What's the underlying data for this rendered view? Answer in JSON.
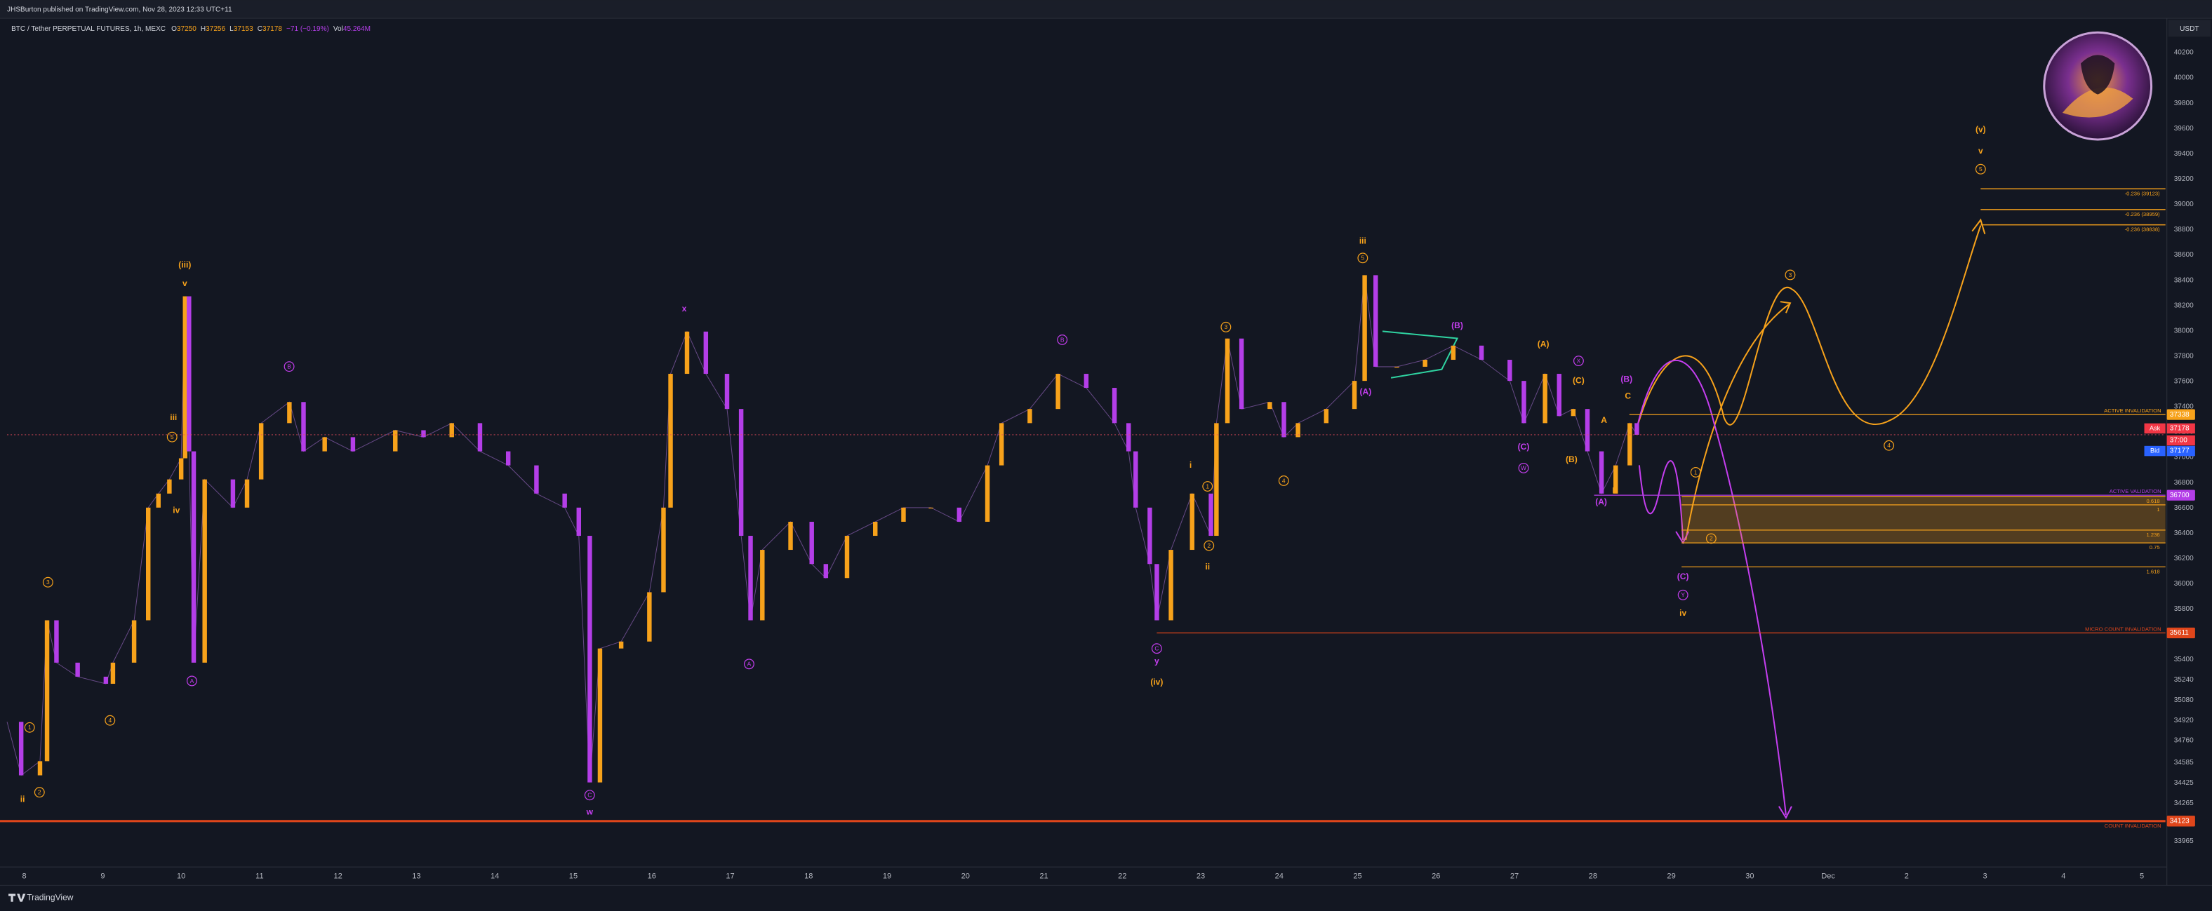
{
  "header": {
    "publisher": "JHSBurton published on TradingView.com, Nov 28, 2023 12:33 UTC+11",
    "brand": "TradingView"
  },
  "chart_data": {
    "type": "candlestick",
    "title": "BTC / Tether PERPETUAL FUTURES, 1h, MEXC",
    "legend": [
      {
        "label": "O",
        "value": 37250
      },
      {
        "label": "H",
        "value": 37256
      },
      {
        "label": "L",
        "value": 37153
      },
      {
        "label": "C",
        "value": 37178
      }
    ],
    "change": "−71 (−0.19%)",
    "volume_label": "Vol",
    "volume": "45.264M",
    "currency": "USDT",
    "up_color": "#f7a21b",
    "down_color": "#b43ee8",
    "x": [
      7.78,
      7.96,
      8.2,
      8.29,
      8.41,
      8.68,
      9.04,
      9.13,
      9.4,
      9.58,
      9.71,
      9.85,
      10.0,
      10.05,
      10.1,
      10.16,
      10.3,
      10.66,
      10.84,
      11.02,
      11.38,
      11.56,
      11.83,
      12.19,
      12.73,
      13.09,
      13.45,
      13.81,
      14.17,
      14.53,
      14.89,
      15.07,
      15.21,
      15.34,
      15.61,
      15.97,
      16.15,
      16.24,
      16.45,
      16.69,
      16.96,
      17.14,
      17.26,
      17.41,
      17.77,
      18.04,
      18.22,
      18.49,
      18.85,
      19.21,
      19.56,
      19.92,
      20.28,
      20.46,
      20.82,
      21.18,
      21.54,
      21.9,
      22.08,
      22.17,
      22.35,
      22.44,
      22.62,
      22.89,
      23.13,
      23.2,
      23.34,
      23.52,
      23.88,
      24.06,
      24.24,
      24.6,
      24.96,
      25.09,
      25.23,
      25.5,
      25.86,
      26.22,
      26.58,
      26.94,
      27.12,
      27.39,
      27.57,
      27.75,
      27.93,
      28.11,
      28.29,
      28.47,
      28.56
    ],
    "values": [
      34908,
      34485,
      34597,
      35711,
      35376,
      35265,
      35209,
      35376,
      35711,
      36602,
      36713,
      36825,
      36992,
      38273,
      37047,
      35376,
      36825,
      36602,
      36825,
      37270,
      37437,
      37047,
      37159,
      37047,
      37214,
      37159,
      37270,
      37047,
      36936,
      36713,
      36602,
      36379,
      34429,
      35488,
      35543,
      35933,
      36602,
      37660,
      37994,
      37660,
      37382,
      36379,
      35711,
      36268,
      36490,
      36156,
      36045,
      36379,
      36490,
      36602,
      36602,
      36490,
      36936,
      37270,
      37382,
      37660,
      37549,
      37270,
      37047,
      36602,
      36156,
      35711,
      36268,
      36713,
      36379,
      37270,
      37939,
      37382,
      37437,
      37159,
      37270,
      37382,
      37604,
      38440,
      37716,
      37716,
      37771,
      37883,
      37771,
      37604,
      37270,
      37660,
      37326,
      37382,
      37047,
      36713,
      36936,
      37270,
      37178
    ],
    "xlim": [
      7.78,
      35.3
    ],
    "xticks": [
      8,
      9,
      10,
      11,
      12,
      13,
      14,
      15,
      16,
      17,
      18,
      19,
      20,
      21,
      22,
      23,
      24,
      25,
      26,
      27,
      28,
      29,
      30,
      {
        "value": 31,
        "label": "Dec"
      },
      {
        "value": 32,
        "label": "2"
      },
      {
        "value": 33,
        "label": "3"
      },
      {
        "value": 34,
        "label": "4"
      },
      {
        "value": 35,
        "label": "5"
      }
    ],
    "ylim": [
      33760,
      40460
    ],
    "yticks": [
      40200,
      40000,
      39800,
      39600,
      39400,
      39200,
      39000,
      38800,
      38600,
      38400,
      38200,
      38000,
      37800,
      37600,
      37400,
      37200,
      37000,
      36800,
      36600,
      36400,
      36200,
      36000,
      35800,
      35400,
      35240,
      35080,
      34920,
      34760,
      34585,
      34425,
      34265,
      33965
    ],
    "levels": [
      {
        "name": "ACTIVE INVALIDATION",
        "value": 37338,
        "color": "#f7a21b"
      },
      {
        "name": "ACTIVE VALIDATION",
        "value": 36700,
        "color": "#b43ee8"
      },
      {
        "name": "MICRO COUNT INVALIDATION",
        "value": 35611,
        "color": "#e0461b"
      },
      {
        "name": "COUNT INVALIDATION",
        "value": 34123,
        "color": "#e0461b"
      }
    ],
    "ask": {
      "label": "Ask",
      "value": 37178
    },
    "countdown": "37:00",
    "bid": {
      "label": "Bid",
      "value": 37177
    },
    "fib_targets": [
      {
        "label": "-0.236 (39123)",
        "value": 39123
      },
      {
        "label": "-0.236 (38959)",
        "value": 38959
      },
      {
        "label": "-0.236 (38838)",
        "value": 38838
      }
    ],
    "fib_zone": [
      {
        "ratio": 0.618,
        "price": 36691
      },
      {
        "ratio": 1,
        "price": 36624
      },
      {
        "ratio": 1.236,
        "price": 36424
      },
      {
        "ratio": 0.75,
        "price": 36323
      },
      {
        "ratio": 1.618,
        "price": 36134
      }
    ],
    "wave_labels": [
      "(iii)",
      "v",
      "iii",
      "5",
      "iv",
      "3",
      "1",
      "2",
      "ii",
      "4",
      "A",
      "B",
      "x",
      "C",
      "w",
      "A",
      "B",
      "C",
      "y",
      "(iv)",
      "3",
      "i",
      "1",
      "2",
      "ii",
      "4",
      "iii",
      "5",
      "(B)",
      "(A)",
      "(A)",
      "X",
      "(C)",
      "(C)",
      "W",
      "(B)",
      "(B)",
      "A",
      "C",
      "B",
      "(A)",
      "1",
      "2",
      "(C)",
      "Y",
      "iv",
      "3",
      "4",
      "(v)",
      "v",
      "5"
    ]
  }
}
